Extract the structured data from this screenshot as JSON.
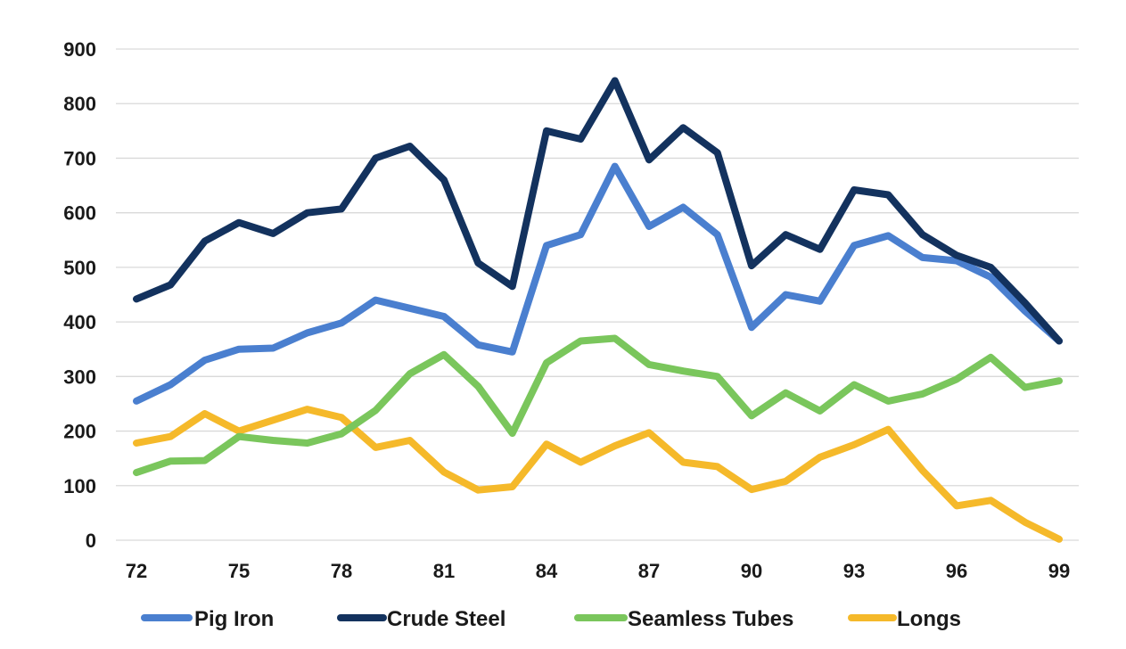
{
  "chart_data": {
    "type": "line",
    "title": "",
    "xlabel": "",
    "ylabel": "",
    "ylim": [
      0,
      900
    ],
    "yticks": [
      "0",
      "100",
      "200",
      "300",
      "400",
      "500",
      "600",
      "700",
      "800",
      "900"
    ],
    "yticks_values": [
      0,
      100,
      200,
      300,
      400,
      500,
      600,
      700,
      800,
      900
    ],
    "xrange": [
      72,
      99
    ],
    "xticks": [
      "72",
      "75",
      "78",
      "81",
      "84",
      "87",
      "90",
      "93",
      "96",
      "99"
    ],
    "xticks_values": [
      72,
      75,
      78,
      81,
      84,
      87,
      90,
      93,
      96,
      99
    ],
    "grid": true,
    "legend_position": "bottom",
    "x": [
      72,
      73,
      74,
      75,
      76,
      77,
      78,
      79,
      80,
      81,
      82,
      83,
      84,
      85,
      86,
      87,
      88,
      89,
      90,
      91,
      92,
      93,
      94,
      95,
      96,
      97,
      98,
      99
    ],
    "series": [
      {
        "name": "Pig Iron",
        "color": "#4a7fcf",
        "values": [
          255,
          285,
          330,
          350,
          352,
          380,
          398,
          440,
          425,
          410,
          358,
          345,
          540,
          560,
          685,
          575,
          610,
          560,
          390,
          450,
          438,
          540,
          558,
          518,
          512,
          482,
          420,
          365
        ]
      },
      {
        "name": "Crude Steel",
        "color": "#13325e",
        "values": [
          442,
          468,
          548,
          582,
          562,
          600,
          607,
          700,
          722,
          660,
          508,
          465,
          750,
          735,
          842,
          697,
          756,
          710,
          503,
          560,
          533,
          642,
          633,
          560,
          522,
          500,
          435,
          365
        ]
      },
      {
        "name": "Seamless Tubes",
        "color": "#7ac65c",
        "values": [
          124,
          145,
          146,
          190,
          183,
          178,
          195,
          238,
          305,
          340,
          282,
          196,
          325,
          365,
          370,
          322,
          310,
          300,
          228,
          270,
          237,
          285,
          255,
          268,
          295,
          335,
          280,
          292
        ]
      },
      {
        "name": "Longs",
        "color": "#f5b92a",
        "values": [
          178,
          190,
          232,
          200,
          220,
          240,
          225,
          170,
          183,
          125,
          92,
          98,
          176,
          143,
          173,
          197,
          143,
          135,
          93,
          108,
          152,
          175,
          203,
          128,
          63,
          73,
          33,
          2
        ]
      }
    ]
  }
}
